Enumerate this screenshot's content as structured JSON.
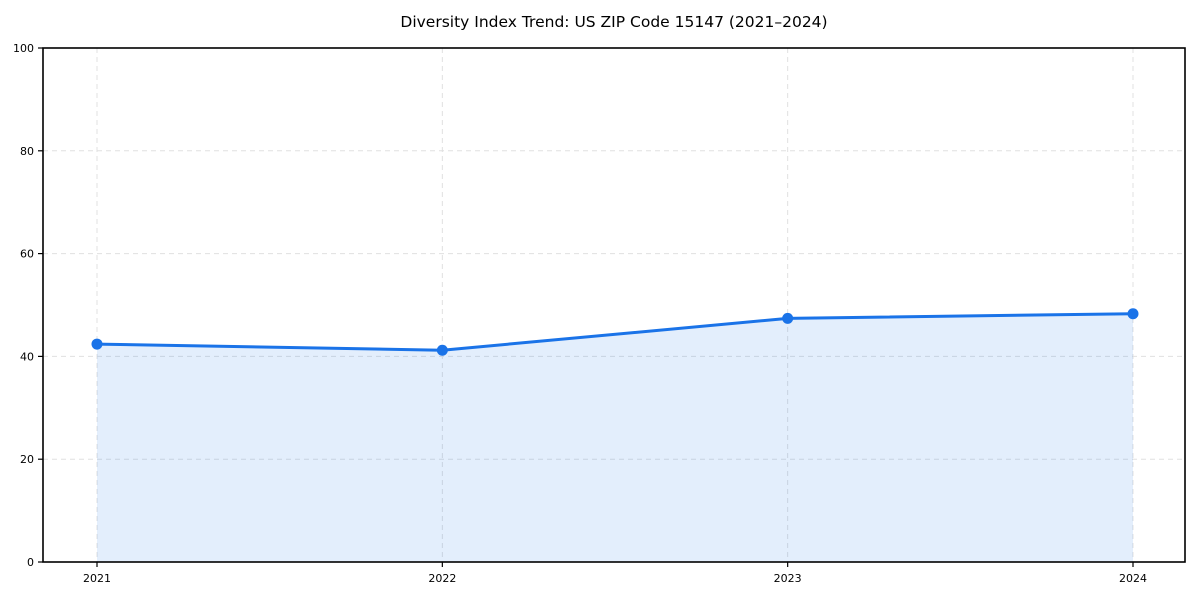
{
  "page": {
    "background": "#ffffff"
  },
  "chart_data": {
    "type": "area",
    "title": "Diversity Index Trend: US ZIP Code 15147 (2021–2024)",
    "categories": [
      "2021",
      "2022",
      "2023",
      "2024"
    ],
    "values": [
      42.4,
      41.2,
      47.4,
      48.3
    ],
    "xlabel": "",
    "ylabel": "",
    "ylim": [
      0,
      100
    ],
    "yticks": [
      0,
      20,
      40,
      60,
      80,
      100
    ],
    "grid": "dashed",
    "legend": "none",
    "line_color": "#1a73e8",
    "marker_color": "#1a73e8",
    "fill_color": "#1a73e8",
    "fill_opacity": 0.12,
    "grid_color": "#e0e0e0",
    "spine_color": "#000000",
    "text_color": "#000000"
  }
}
